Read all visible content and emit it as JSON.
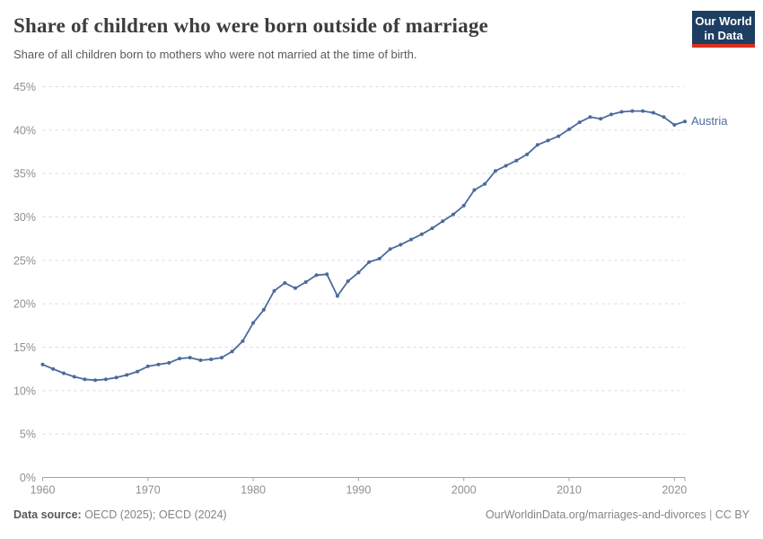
{
  "header": {
    "title": "Share of children who were born outside of marriage",
    "subtitle": "Share of all children born to mothers who were not married at the time of birth.",
    "logo_line1": "Our World",
    "logo_line2": "in Data"
  },
  "chart_data": {
    "type": "line",
    "title": "Share of children who were born outside of marriage",
    "entity_label": "Austria",
    "x": [
      1960,
      1961,
      1962,
      1963,
      1964,
      1965,
      1966,
      1967,
      1968,
      1969,
      1970,
      1971,
      1972,
      1973,
      1974,
      1975,
      1976,
      1977,
      1978,
      1979,
      1980,
      1981,
      1982,
      1983,
      1984,
      1985,
      1986,
      1987,
      1988,
      1989,
      1990,
      1991,
      1992,
      1993,
      1994,
      1995,
      1996,
      1997,
      1998,
      1999,
      2000,
      2001,
      2002,
      2003,
      2004,
      2005,
      2006,
      2007,
      2008,
      2009,
      2010,
      2011,
      2012,
      2013,
      2014,
      2015,
      2016,
      2017,
      2018,
      2019,
      2020,
      2021
    ],
    "values": [
      13.0,
      12.5,
      12.0,
      11.6,
      11.3,
      11.2,
      11.3,
      11.5,
      11.8,
      12.2,
      12.8,
      13.0,
      13.2,
      13.7,
      13.8,
      13.5,
      13.6,
      13.8,
      14.5,
      15.7,
      17.8,
      19.3,
      21.5,
      22.4,
      21.8,
      22.5,
      23.3,
      23.4,
      20.9,
      22.6,
      23.6,
      24.8,
      25.2,
      26.3,
      26.8,
      27.4,
      28.0,
      28.7,
      29.5,
      30.3,
      31.3,
      33.1,
      33.8,
      35.3,
      35.9,
      36.5,
      37.2,
      38.3,
      38.8,
      39.3,
      40.1,
      40.9,
      41.5,
      41.3,
      41.8,
      42.1,
      42.2,
      42.2,
      42.0,
      41.5,
      40.6,
      41.0
    ],
    "unit": "%",
    "ylim": [
      0,
      45
    ],
    "ytick_labels": [
      "0%",
      "5%",
      "10%",
      "15%",
      "20%",
      "25%",
      "30%",
      "35%",
      "40%",
      "45%"
    ],
    "xtick_labels": [
      "1960",
      "1970",
      "1980",
      "1990",
      "2000",
      "2010",
      "2020"
    ],
    "grid": true,
    "legend_position": "end-of-line",
    "line_color": "#4c6a9c"
  },
  "footer": {
    "datasource_label": "Data source:",
    "datasource_value": " OECD (2025); OECD (2024)",
    "link": "OurWorldinData.org/marriages-and-divorces",
    "separator": " | ",
    "license": "CC BY"
  }
}
